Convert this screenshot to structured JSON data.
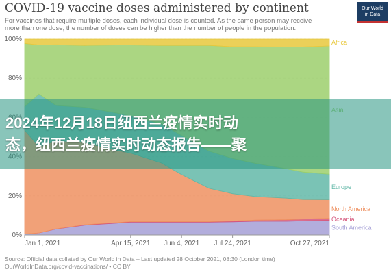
{
  "title": "COVID-19 vaccine doses administered by continent",
  "subtitle": "For vaccines that require multiple doses, each individual dose is counted. As the same person may receive more than one dose, the number of doses can be higher than the number of people in the population.",
  "logo": {
    "line1": "Our World",
    "line2": "in Data"
  },
  "banner": {
    "line1": "2024年12月18日纽西兰疫情实时动",
    "line2": "态，纽西兰疫情实时动态报告——聚"
  },
  "source": {
    "line1": "Source: Official data collated by Our World in Data – Last updated 28 October 2021, 08:30 (London time)",
    "line2": "OurWorldInData.org/covid-vaccinations/ • CC BY"
  },
  "colors": {
    "Africa": "#e8c83c",
    "Asia": "#9ccf6c",
    "Europe": "#63b8a8",
    "North America": "#ee9060",
    "Oceania": "#d4547a",
    "South America": "#a49fd6"
  },
  "chart_data": {
    "type": "area",
    "stacked": true,
    "normalized": true,
    "x": [
      "2021-01-01",
      "2021-01-15",
      "2021-02-01",
      "2021-03-01",
      "2021-04-01",
      "2021-04-15",
      "2021-05-15",
      "2021-06-04",
      "2021-07-01",
      "2021-07-24",
      "2021-08-15",
      "2021-09-15",
      "2021-10-01",
      "2021-10-27"
    ],
    "x_tick_labels": [
      "Jan 1, 2021",
      "Apr 15, 2021",
      "Jun 4, 2021",
      "Jul 24, 2021",
      "Oct 27, 2021"
    ],
    "x_tick_dates": [
      "2021-01-01",
      "2021-04-15",
      "2021-06-04",
      "2021-07-24",
      "2021-10-27"
    ],
    "y_ticks": [
      0,
      20,
      40,
      60,
      80,
      100
    ],
    "y_tick_labels": [
      "0%",
      "20%",
      "40%",
      "60%",
      "80%",
      "100%"
    ],
    "ylim": [
      0,
      100
    ],
    "series": [
      {
        "name": "South America",
        "values": [
          0.5,
          1,
          3,
          5,
          6,
          6.5,
          6.5,
          6.5,
          6.5,
          6.7,
          7,
          7,
          7.2,
          7.5
        ]
      },
      {
        "name": "Oceania",
        "values": [
          0,
          0,
          0.1,
          0.2,
          0.3,
          0.3,
          0.3,
          0.3,
          0.3,
          0.4,
          0.6,
          0.8,
          0.9,
          1
        ]
      },
      {
        "name": "North America",
        "values": [
          53,
          44,
          45,
          42,
          37,
          35,
          30,
          24,
          17,
          14,
          12,
          11,
          10,
          9.5
        ]
      },
      {
        "name": "Europe",
        "values": [
          12,
          27,
          18,
          18,
          19,
          19,
          20,
          20,
          19,
          18,
          17,
          15,
          14,
          13
        ]
      },
      {
        "name": "Asia",
        "values": [
          32.3,
          25,
          31,
          31.6,
          34.7,
          36.2,
          40,
          46,
          54,
          57,
          59.5,
          62.2,
          63.9,
          65.5
        ]
      },
      {
        "name": "Africa",
        "values": [
          2.2,
          3,
          2.9,
          3.2,
          3,
          3,
          3.2,
          3.2,
          3.2,
          3.9,
          3.9,
          4,
          4,
          3.5
        ]
      }
    ]
  }
}
